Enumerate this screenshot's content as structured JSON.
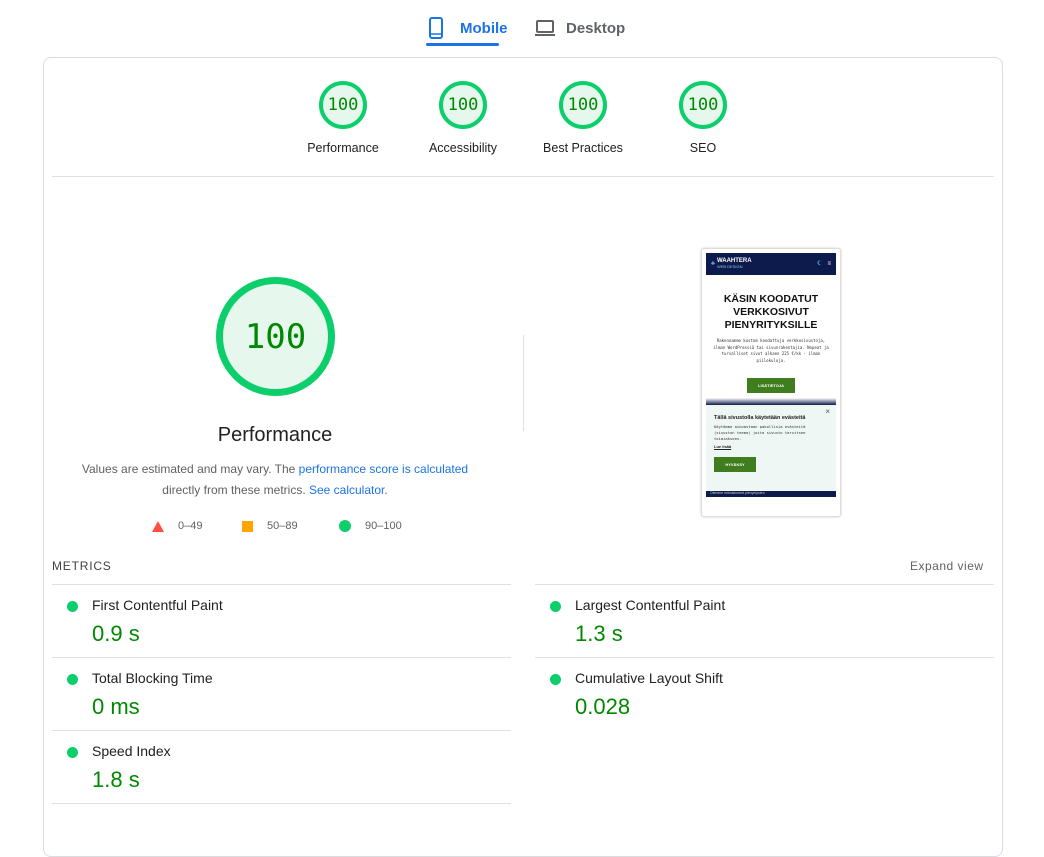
{
  "tabs": [
    {
      "label": "Mobile",
      "icon": "smartphone-icon",
      "active": true
    },
    {
      "label": "Desktop",
      "icon": "laptop-icon",
      "active": false
    }
  ],
  "categories": [
    {
      "label": "Performance",
      "score": "100"
    },
    {
      "label": "Accessibility",
      "score": "100"
    },
    {
      "label": "Best Practices",
      "score": "100"
    },
    {
      "label": "SEO",
      "score": "100"
    }
  ],
  "performance": {
    "score": "100",
    "title": "Performance",
    "desc_1": "Values are estimated and may vary. The ",
    "link_1": "performance score is calculated",
    "desc_2": " directly from these metrics. ",
    "link_2": "See calculator",
    "desc_3": "."
  },
  "legend": [
    {
      "range": "0–49",
      "color": "#ff4e42"
    },
    {
      "range": "50–89",
      "color": "#ffa400"
    },
    {
      "range": "90–100",
      "color": "#0cce6b"
    }
  ],
  "screenshot": {
    "brand": "WAAHTERA",
    "brand_sub": "WEB DESIGN",
    "headline": "KÄSIN KOODATUT VERKKOSIVUT PIENYRITYKSILLE",
    "body": "Rakennamme kustom koodattuja verkkosivustoja, ilman WordPressiä tai sivunrakentajia. Nopeat ja turvalliset sivut alkaen 225 €/kk - ilman piilokuluja.",
    "cta": "LISÄTIETOJA",
    "cookie_title": "Tällä sivustolla käytetään evästeitä",
    "cookie_body": "Käytämme ainoastaan pakollisia evästeitä (sivuston teema) joita sivusto tarvitsee toimiakseen.",
    "cookie_link": "Lue lisää",
    "cookie_button": "HYVÄKSY",
    "footer": "Olemme erikoistuneet pienyritysten"
  },
  "metrics_header": "METRICS",
  "expand_view": "Expand view",
  "metrics": [
    {
      "label": "First Contentful Paint",
      "value": "0.9 s"
    },
    {
      "label": "Largest Contentful Paint",
      "value": "1.3 s"
    },
    {
      "label": "Total Blocking Time",
      "value": "0 ms"
    },
    {
      "label": "Cumulative Layout Shift",
      "value": "0.028"
    },
    {
      "label": "Speed Index",
      "value": "1.8 s"
    }
  ]
}
